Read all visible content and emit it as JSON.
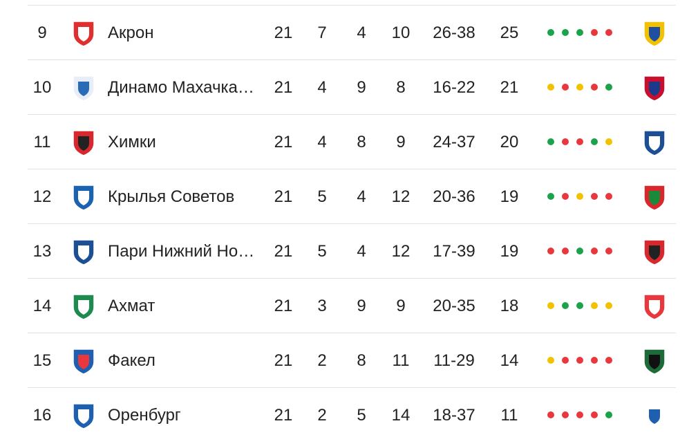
{
  "table": {
    "rows": [
      {
        "position": 9,
        "team": "Акрон",
        "played": 21,
        "won": 7,
        "drawn": 4,
        "lost": 10,
        "goals": "26-38",
        "points": 25,
        "form": [
          "#1aa34a",
          "#1aa34a",
          "#1aa34a",
          "#e8383d",
          "#e8383d"
        ]
      },
      {
        "position": 10,
        "team": "Динамо Махачка…",
        "played": 21,
        "won": 4,
        "drawn": 9,
        "lost": 8,
        "goals": "16-22",
        "points": 21,
        "form": [
          "#f2c200",
          "#e8383d",
          "#f2c200",
          "#e8383d",
          "#1aa34a"
        ]
      },
      {
        "position": 11,
        "team": "Химки",
        "played": 21,
        "won": 4,
        "drawn": 8,
        "lost": 9,
        "goals": "24-37",
        "points": 20,
        "form": [
          "#1aa34a",
          "#e8383d",
          "#e8383d",
          "#1aa34a",
          "#f2c200"
        ]
      },
      {
        "position": 12,
        "team": "Крылья Советов",
        "played": 21,
        "won": 5,
        "drawn": 4,
        "lost": 12,
        "goals": "20-36",
        "points": 19,
        "form": [
          "#1aa34a",
          "#e8383d",
          "#f2c200",
          "#e8383d",
          "#e8383d"
        ]
      },
      {
        "position": 13,
        "team": "Пари Нижний Но…",
        "played": 21,
        "won": 5,
        "drawn": 4,
        "lost": 12,
        "goals": "17-39",
        "points": 19,
        "form": [
          "#e8383d",
          "#e8383d",
          "#1aa34a",
          "#e8383d",
          "#e8383d"
        ]
      },
      {
        "position": 14,
        "team": "Ахмат",
        "played": 21,
        "won": 3,
        "drawn": 9,
        "lost": 9,
        "goals": "20-35",
        "points": 18,
        "form": [
          "#f2c200",
          "#1aa34a",
          "#1aa34a",
          "#f2c200",
          "#f2c200"
        ]
      },
      {
        "position": 15,
        "team": "Факел",
        "played": 21,
        "won": 2,
        "drawn": 8,
        "lost": 11,
        "goals": "11-29",
        "points": 14,
        "form": [
          "#f2c200",
          "#e8383d",
          "#e8383d",
          "#e8383d",
          "#e8383d"
        ]
      },
      {
        "position": 16,
        "team": "Оренбург",
        "played": 21,
        "won": 2,
        "drawn": 5,
        "lost": 14,
        "goals": "18-37",
        "points": 11,
        "form": [
          "#e8383d",
          "#e8383d",
          "#e8383d",
          "#e8383d",
          "#1aa34a"
        ]
      }
    ]
  }
}
